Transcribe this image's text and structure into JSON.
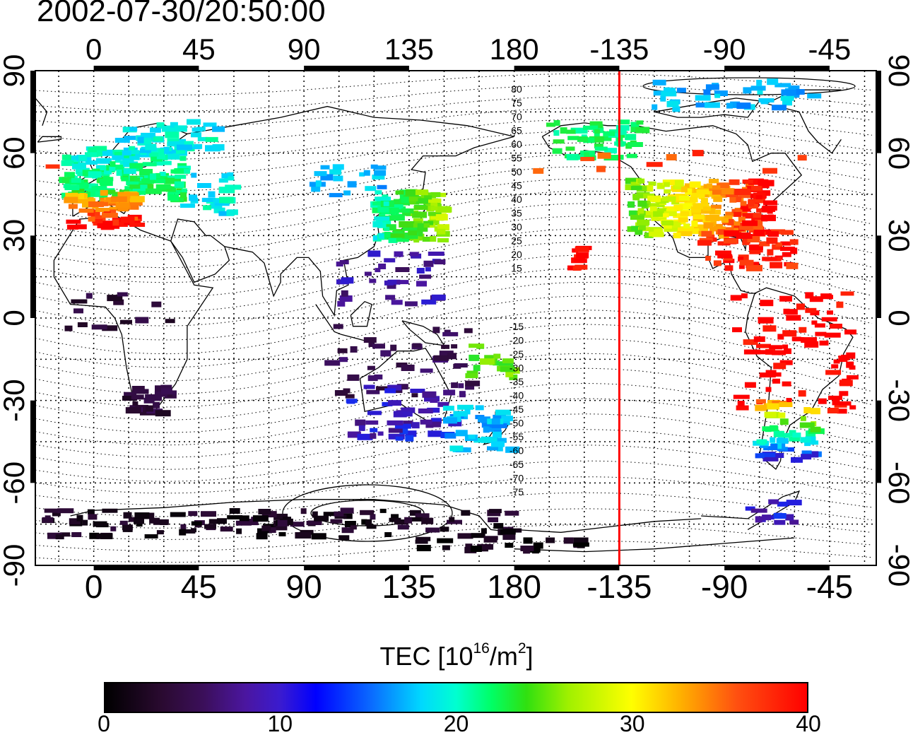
{
  "title": "2002-07-30/20:50:00",
  "map": {
    "top_lon_labels": [
      "0",
      "45",
      "90",
      "135",
      "180",
      "-135",
      "-90",
      "-45"
    ],
    "bottom_lon_labels": [
      "0",
      "45",
      "90",
      "135",
      "180",
      "-135",
      "-90",
      "-45"
    ],
    "left_lat_labels": [
      "90",
      "60",
      "30",
      "0",
      "-30",
      "-60",
      "-90"
    ],
    "right_lat_labels": [
      "90",
      "60",
      "30",
      "0",
      "-30",
      "-60",
      "-90"
    ],
    "contour_labels_north": [
      "80",
      "75",
      "70",
      "65",
      "60",
      "55",
      "50",
      "45",
      "40",
      "35",
      "30",
      "25",
      "20",
      "15"
    ],
    "contour_labels_south": [
      "-15",
      "-20",
      "-25",
      "-30",
      "-35",
      "-40",
      "-45",
      "-50",
      "-55",
      "-60",
      "-65",
      "-70",
      "-75"
    ],
    "terminator_longitude": -135,
    "terminator_color": "#ff0000"
  },
  "colorbar": {
    "label_main": "TEC  [10",
    "label_exp1": "16",
    "label_mid": "/m",
    "label_exp2": "2",
    "label_end": "]",
    "ticks": [
      "0",
      "10",
      "20",
      "30",
      "40"
    ],
    "range": [
      0,
      40
    ]
  }
}
